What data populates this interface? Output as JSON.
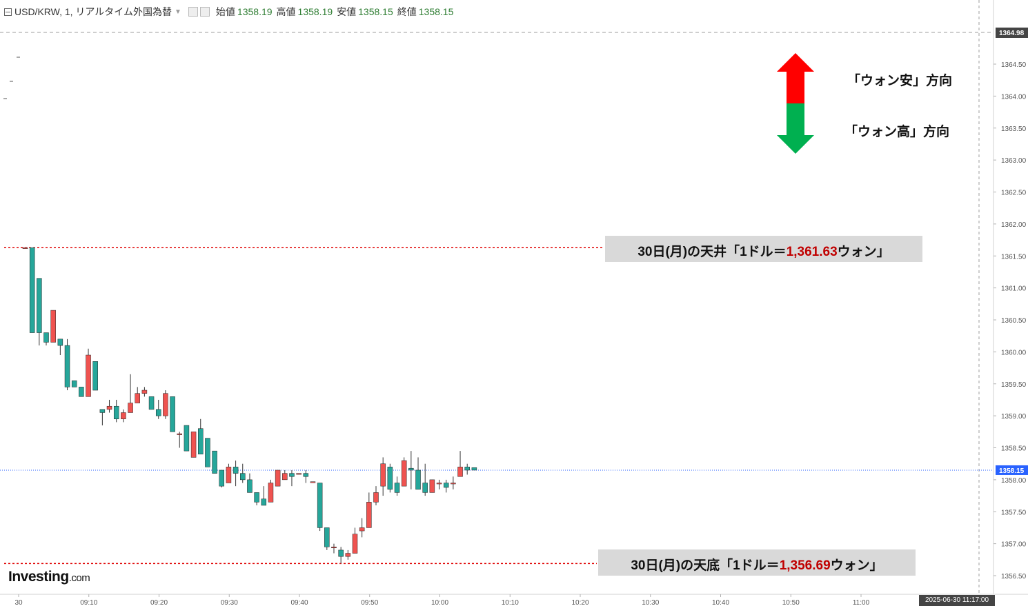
{
  "header": {
    "symbol": "USD/KRW, 1, リアルタイム外国為替",
    "open_label": "始値",
    "open_value": "1358.19",
    "high_label": "高値",
    "high_value": "1358.19",
    "low_label": "安値",
    "low_value": "1358.15",
    "close_label": "終値",
    "close_value": "1358.15"
  },
  "legend": {
    "up_label": "「ウォン安」方向",
    "down_label": "「ウォン高」方向",
    "up_color": "#ff0000",
    "down_color": "#00b050"
  },
  "annotations": {
    "top": {
      "prefix": "30日(月)の天井「1ドル＝",
      "value": "1,361.63",
      "suffix": "ウォン」"
    },
    "bottom": {
      "prefix": "30日(月)の天底「1ドル＝",
      "value": "1,356.69",
      "suffix": "ウォン」"
    }
  },
  "logo": {
    "brand": "Investing",
    "tld": ".com"
  },
  "timestamp": "2025-06-30 11:17:00",
  "colors": {
    "up_candle": "#ef5350",
    "down_candle": "#26a69a",
    "annotation_value": "#c00000",
    "price_tag": "#2962ff"
  },
  "chart_data": {
    "type": "candlestick",
    "y_ticks": [
      "1356.50",
      "1357.00",
      "1357.50",
      "1358.00",
      "1358.50",
      "1359.00",
      "1359.50",
      "1360.00",
      "1360.50",
      "1361.00",
      "1361.50",
      "1362.00",
      "1362.50",
      "1363.00",
      "1363.50",
      "1364.00",
      "1364.50"
    ],
    "ylim": [
      1356.25,
      1365.5
    ],
    "x_ticks": [
      "30",
      "09:10",
      "09:20",
      "09:30",
      "09:40",
      "09:50",
      "10:00",
      "10:10",
      "10:20",
      "10:30",
      "10:40",
      "10:50",
      "11:00"
    ],
    "last_price": "1358.15",
    "dashed_level": "1364.98",
    "ceiling": 1361.63,
    "floor": 1356.69,
    "candles": [
      [
        1361.63,
        1361.63,
        1361.63,
        1361.63
      ],
      [
        1361.63,
        1361.63,
        1360.3,
        1360.3
      ],
      [
        1361.15,
        1361.15,
        1360.1,
        1360.3
      ],
      [
        1360.3,
        1360.3,
        1360.1,
        1360.15
      ],
      [
        1360.15,
        1360.65,
        1360.15,
        1360.65
      ],
      [
        1360.2,
        1360.2,
        1359.95,
        1360.1
      ],
      [
        1360.1,
        1360.2,
        1359.4,
        1359.45
      ],
      [
        1359.55,
        1359.55,
        1359.45,
        1359.45
      ],
      [
        1359.45,
        1359.45,
        1359.3,
        1359.3
      ],
      [
        1359.3,
        1360.05,
        1359.3,
        1359.95
      ],
      [
        1359.85,
        1359.85,
        1359.4,
        1359.4
      ],
      [
        1359.1,
        1359.1,
        1358.85,
        1359.05
      ],
      [
        1359.1,
        1359.25,
        1359.05,
        1359.15
      ],
      [
        1359.15,
        1359.25,
        1358.9,
        1358.95
      ],
      [
        1358.95,
        1359.1,
        1358.9,
        1359.05
      ],
      [
        1359.05,
        1359.65,
        1359.05,
        1359.2
      ],
      [
        1359.2,
        1359.45,
        1359.2,
        1359.35
      ],
      [
        1359.35,
        1359.45,
        1359.3,
        1359.4
      ],
      [
        1359.3,
        1359.3,
        1359.1,
        1359.1
      ],
      [
        1359.1,
        1359.25,
        1358.95,
        1359.0
      ],
      [
        1359.0,
        1359.4,
        1358.95,
        1359.35
      ],
      [
        1359.3,
        1359.3,
        1358.75,
        1358.75
      ],
      [
        1358.72,
        1358.75,
        1358.5,
        1358.72
      ],
      [
        1358.85,
        1358.85,
        1358.45,
        1358.45
      ],
      [
        1358.35,
        1358.75,
        1358.35,
        1358.75
      ],
      [
        1358.8,
        1358.95,
        1358.4,
        1358.4
      ],
      [
        1358.65,
        1358.65,
        1358.2,
        1358.2
      ],
      [
        1358.45,
        1358.45,
        1358.1,
        1358.1
      ],
      [
        1358.15,
        1358.15,
        1357.88,
        1357.9
      ],
      [
        1357.95,
        1358.25,
        1357.95,
        1358.2
      ],
      [
        1358.2,
        1358.3,
        1357.9,
        1358.1
      ],
      [
        1358.1,
        1358.25,
        1357.95,
        1358.0
      ],
      [
        1358.0,
        1358.1,
        1357.8,
        1357.8
      ],
      [
        1357.8,
        1357.8,
        1357.6,
        1357.65
      ],
      [
        1357.7,
        1357.9,
        1357.6,
        1357.6
      ],
      [
        1357.65,
        1358.0,
        1357.65,
        1357.95
      ],
      [
        1357.9,
        1358.15,
        1357.9,
        1358.15
      ],
      [
        1358.0,
        1358.15,
        1358.0,
        1358.1
      ],
      [
        1358.1,
        1358.15,
        1357.9,
        1358.05
      ],
      [
        1358.1,
        1358.1,
        1358.1,
        1358.1
      ],
      [
        1358.1,
        1358.15,
        1357.95,
        1358.05
      ],
      [
        1357.97,
        1357.97,
        1357.97,
        1357.97
      ],
      [
        1357.95,
        1357.95,
        1357.2,
        1357.25
      ],
      [
        1357.25,
        1357.25,
        1356.9,
        1356.95
      ],
      [
        1356.95,
        1357.0,
        1356.85,
        1356.95
      ],
      [
        1356.9,
        1356.95,
        1356.69,
        1356.8
      ],
      [
        1356.8,
        1356.9,
        1356.75,
        1356.85
      ],
      [
        1356.85,
        1357.25,
        1356.85,
        1357.15
      ],
      [
        1357.2,
        1357.4,
        1357.1,
        1357.25
      ],
      [
        1357.25,
        1357.8,
        1357.25,
        1357.65
      ],
      [
        1357.65,
        1357.9,
        1357.6,
        1357.8
      ],
      [
        1357.9,
        1358.35,
        1357.75,
        1358.25
      ],
      [
        1358.2,
        1358.25,
        1357.8,
        1357.85
      ],
      [
        1357.95,
        1358.05,
        1357.75,
        1357.8
      ],
      [
        1357.9,
        1358.35,
        1357.9,
        1358.3
      ],
      [
        1358.18,
        1358.45,
        1357.85,
        1358.15
      ],
      [
        1358.15,
        1358.35,
        1357.85,
        1357.85
      ],
      [
        1357.95,
        1358.25,
        1357.75,
        1357.8
      ],
      [
        1357.8,
        1358.0,
        1357.8,
        1358.0
      ],
      [
        1357.95,
        1358.0,
        1357.85,
        1357.95
      ],
      [
        1357.95,
        1358.0,
        1357.8,
        1357.88
      ],
      [
        1357.95,
        1358.05,
        1357.85,
        1357.95
      ],
      [
        1358.05,
        1358.45,
        1358.05,
        1358.2
      ],
      [
        1358.2,
        1358.25,
        1358.08,
        1358.15
      ],
      [
        1358.19,
        1358.19,
        1358.15,
        1358.15
      ]
    ]
  }
}
